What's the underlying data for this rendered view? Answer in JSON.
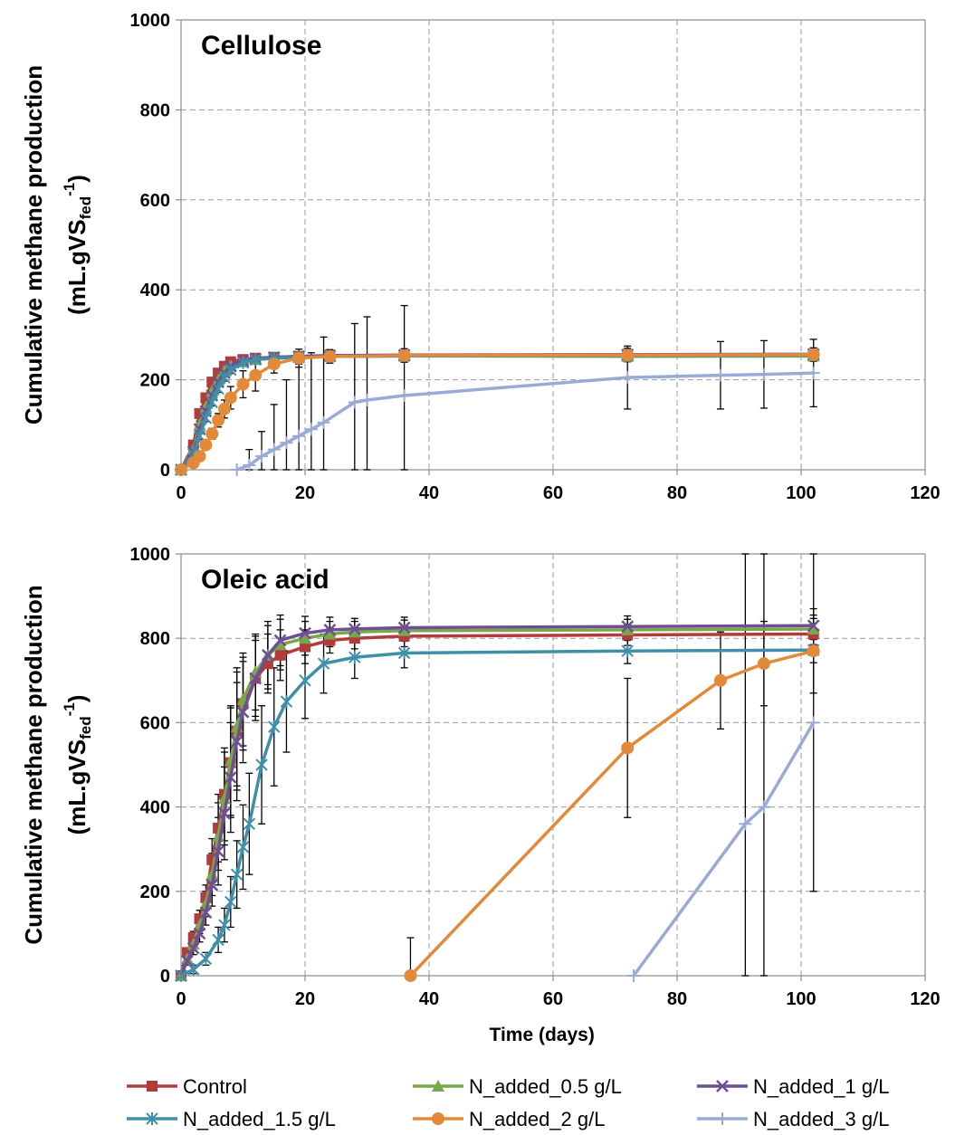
{
  "legend": {
    "placement": "bottom",
    "items": [
      {
        "label": "Control",
        "color": "#b33b3b",
        "marker": "square"
      },
      {
        "label": "N_added_0.5 g/L",
        "color": "#79a84a",
        "marker": "triangle"
      },
      {
        "label": "N_added_1 g/L",
        "color": "#6f4f94",
        "marker": "x"
      },
      {
        "label": "N_added_1.5 g/L",
        "color": "#3f8fa8",
        "marker": "asterisk"
      },
      {
        "label": "N_added_2 g/L",
        "color": "#e38a3a",
        "marker": "circle"
      },
      {
        "label": "N_added_3 g/L",
        "color": "#9aaad6",
        "marker": "plus"
      }
    ]
  },
  "chart_data": [
    {
      "type": "line",
      "title": "Cellulose",
      "xlabel": "",
      "ylabel": "Cumulative methane production (mL.gVSfed-1)",
      "ylabel_main": "Cumulative methane production",
      "ylabel_unit": "(mL.gVS",
      "ylabel_sub": "fed",
      "ylabel_sup": "-1",
      "ylabel_close": ")",
      "xlim": [
        0,
        120
      ],
      "ylim": [
        0,
        1000
      ],
      "xticks": [
        0,
        20,
        40,
        60,
        80,
        100,
        120
      ],
      "yticks": [
        0,
        200,
        400,
        600,
        800,
        1000
      ],
      "grid": true,
      "series": [
        {
          "name": "Control",
          "points": [
            [
              0,
              0
            ],
            [
              2,
              55
            ],
            [
              3,
              125
            ],
            [
              4,
              160
            ],
            [
              5,
              195
            ],
            [
              6,
              215
            ],
            [
              7,
              230
            ],
            [
              8,
              240
            ],
            [
              10,
              245
            ],
            [
              12,
              248
            ],
            [
              15,
              250
            ],
            [
              19,
              252
            ],
            [
              24,
              253
            ],
            [
              36,
              254
            ],
            [
              72,
              255
            ],
            [
              102,
              256
            ]
          ],
          "errors": [
            0,
            5,
            8,
            8,
            8,
            8,
            8,
            8,
            8,
            8,
            8,
            8,
            8,
            8,
            8,
            8
          ]
        },
        {
          "name": "N_added_0.5 g/L",
          "points": [
            [
              0,
              0
            ],
            [
              2,
              45
            ],
            [
              3,
              100
            ],
            [
              4,
              140
            ],
            [
              5,
              175
            ],
            [
              6,
              200
            ],
            [
              7,
              220
            ],
            [
              8,
              232
            ],
            [
              10,
              240
            ],
            [
              12,
              245
            ],
            [
              15,
              248
            ],
            [
              19,
              250
            ],
            [
              24,
              252
            ],
            [
              36,
              253
            ],
            [
              72,
              252
            ],
            [
              102,
              253
            ]
          ],
          "errors": [
            0,
            5,
            8,
            8,
            8,
            8,
            8,
            8,
            8,
            8,
            8,
            8,
            8,
            8,
            8,
            8
          ]
        },
        {
          "name": "N_added_1 g/L",
          "points": [
            [
              0,
              0
            ],
            [
              2,
              40
            ],
            [
              3,
              90
            ],
            [
              4,
              130
            ],
            [
              5,
              165
            ],
            [
              6,
              195
            ],
            [
              7,
              215
            ],
            [
              8,
              230
            ],
            [
              10,
              242
            ],
            [
              12,
              247
            ],
            [
              15,
              250
            ],
            [
              19,
              252
            ],
            [
              24,
              254
            ],
            [
              36,
              255
            ],
            [
              72,
              256
            ],
            [
              102,
              257
            ]
          ],
          "errors": [
            0,
            5,
            8,
            8,
            8,
            8,
            8,
            8,
            8,
            8,
            8,
            8,
            8,
            8,
            8,
            8
          ]
        },
        {
          "name": "N_added_1.5 g/L",
          "points": [
            [
              0,
              0
            ],
            [
              2,
              35
            ],
            [
              3,
              75
            ],
            [
              4,
              115
            ],
            [
              5,
              150
            ],
            [
              6,
              180
            ],
            [
              7,
              205
            ],
            [
              8,
              222
            ],
            [
              10,
              238
            ],
            [
              12,
              245
            ],
            [
              15,
              248
            ],
            [
              19,
              250
            ],
            [
              24,
              252
            ],
            [
              36,
              253
            ],
            [
              72,
              254
            ],
            [
              102,
              255
            ]
          ],
          "errors": [
            0,
            5,
            8,
            8,
            8,
            8,
            8,
            8,
            8,
            8,
            8,
            8,
            8,
            8,
            8,
            8
          ]
        },
        {
          "name": "N_added_2 g/L",
          "points": [
            [
              0,
              0
            ],
            [
              2,
              15
            ],
            [
              3,
              30
            ],
            [
              4,
              55
            ],
            [
              5,
              80
            ],
            [
              6,
              110
            ],
            [
              7,
              135
            ],
            [
              8,
              160
            ],
            [
              10,
              190
            ],
            [
              12,
              210
            ],
            [
              15,
              235
            ],
            [
              19,
              248
            ],
            [
              24,
              252
            ],
            [
              36,
              254
            ],
            [
              72,
              255
            ],
            [
              102,
              256
            ]
          ],
          "errors": [
            0,
            5,
            8,
            10,
            12,
            15,
            20,
            25,
            30,
            35,
            20,
            20,
            15,
            15,
            15,
            15
          ]
        },
        {
          "name": "N_added_3 g/L",
          "points": [
            [
              9,
              0
            ],
            [
              11,
              10
            ],
            [
              13,
              30
            ],
            [
              15,
              45
            ],
            [
              17,
              60
            ],
            [
              19,
              75
            ],
            [
              21,
              90
            ],
            [
              23,
              105
            ],
            [
              28,
              150
            ],
            [
              30,
              155
            ],
            [
              36,
              165
            ],
            [
              72,
              205
            ],
            [
              87,
              210
            ],
            [
              94,
              212
            ],
            [
              102,
              215
            ]
          ],
          "errors": [
            0,
            35,
            55,
            100,
            140,
            160,
            170,
            190,
            175,
            185,
            200,
            70,
            75,
            75,
            75
          ]
        }
      ]
    },
    {
      "type": "line",
      "title": "Oleic acid",
      "xlabel": "Time (days)",
      "ylabel": "Cumulative methane production (mL.gVSfed-1)",
      "ylabel_main": "Cumulative methane production",
      "ylabel_unit": "(mL.gVS",
      "ylabel_sub": "fed",
      "ylabel_sup": "-1",
      "ylabel_close": ")",
      "xlim": [
        0,
        120
      ],
      "ylim": [
        0,
        1000
      ],
      "xticks": [
        0,
        20,
        40,
        60,
        80,
        100,
        120
      ],
      "yticks": [
        0,
        200,
        400,
        600,
        800,
        1000
      ],
      "grid": true,
      "series": [
        {
          "name": "Control",
          "points": [
            [
              0,
              0
            ],
            [
              1,
              55
            ],
            [
              2,
              90
            ],
            [
              3,
              135
            ],
            [
              4,
              185
            ],
            [
              5,
              275
            ],
            [
              6,
              350
            ],
            [
              7,
              430
            ],
            [
              8,
              505
            ],
            [
              9,
              580
            ],
            [
              10,
              645
            ],
            [
              12,
              705
            ],
            [
              14,
              740
            ],
            [
              16,
              760
            ],
            [
              20,
              780
            ],
            [
              24,
              795
            ],
            [
              28,
              800
            ],
            [
              36,
              805
            ],
            [
              72,
              808
            ],
            [
              102,
              810
            ]
          ],
          "errors": [
            0,
            10,
            15,
            20,
            30,
            50,
            80,
            110,
            130,
            140,
            110,
            90,
            70,
            60,
            40,
            30,
            25,
            25,
            25,
            25
          ]
        },
        {
          "name": "N_added_0.5 g/L",
          "points": [
            [
              0,
              0
            ],
            [
              1,
              40
            ],
            [
              2,
              75
            ],
            [
              3,
              120
            ],
            [
              4,
              170
            ],
            [
              5,
              240
            ],
            [
              6,
              330
            ],
            [
              7,
              420
            ],
            [
              8,
              510
            ],
            [
              9,
              590
            ],
            [
              10,
              655
            ],
            [
              12,
              720
            ],
            [
              14,
              760
            ],
            [
              16,
              785
            ],
            [
              20,
              800
            ],
            [
              24,
              810
            ],
            [
              28,
              815
            ],
            [
              36,
              818
            ],
            [
              72,
              820
            ],
            [
              102,
              822
            ]
          ],
          "errors": [
            0,
            10,
            15,
            20,
            30,
            50,
            80,
            110,
            130,
            140,
            110,
            90,
            70,
            60,
            40,
            30,
            25,
            25,
            25,
            25
          ]
        },
        {
          "name": "N_added_1 g/L",
          "points": [
            [
              0,
              0
            ],
            [
              1,
              35
            ],
            [
              2,
              65
            ],
            [
              3,
              100
            ],
            [
              4,
              150
            ],
            [
              5,
              215
            ],
            [
              6,
              295
            ],
            [
              7,
              385
            ],
            [
              8,
              470
            ],
            [
              9,
              555
            ],
            [
              10,
              625
            ],
            [
              12,
              705
            ],
            [
              14,
              760
            ],
            [
              16,
              795
            ],
            [
              20,
              812
            ],
            [
              24,
              820
            ],
            [
              28,
              822
            ],
            [
              36,
              825
            ],
            [
              72,
              828
            ],
            [
              102,
              830
            ]
          ],
          "errors": [
            0,
            10,
            15,
            20,
            30,
            50,
            80,
            110,
            130,
            140,
            120,
            100,
            80,
            60,
            40,
            30,
            25,
            25,
            25,
            25
          ]
        },
        {
          "name": "N_added_1.5 g/L",
          "points": [
            [
              0,
              0
            ],
            [
              2,
              15
            ],
            [
              4,
              40
            ],
            [
              6,
              85
            ],
            [
              7,
              120
            ],
            [
              8,
              175
            ],
            [
              9,
              240
            ],
            [
              10,
              305
            ],
            [
              11,
              360
            ],
            [
              13,
              500
            ],
            [
              15,
              590
            ],
            [
              17,
              650
            ],
            [
              20,
              700
            ],
            [
              23,
              740
            ],
            [
              28,
              755
            ],
            [
              36,
              765
            ],
            [
              72,
              770
            ],
            [
              102,
              772
            ]
          ],
          "errors": [
            0,
            10,
            15,
            30,
            40,
            60,
            80,
            100,
            120,
            140,
            140,
            120,
            90,
            70,
            50,
            35,
            30,
            30
          ]
        },
        {
          "name": "N_added_2 g/L",
          "points": [
            [
              37,
              0
            ],
            [
              72,
              540
            ],
            [
              87,
              700
            ],
            [
              94,
              740
            ],
            [
              102,
              770
            ]
          ],
          "errors": [
            90,
            165,
            115,
            100,
            100
          ]
        },
        {
          "name": "N_added_3 g/L",
          "points": [
            [
              73,
              0
            ],
            [
              91,
              360
            ],
            [
              94,
              400
            ],
            [
              102,
              600
            ]
          ],
          "errors": [
            0,
            700,
            600,
            400
          ]
        }
      ]
    }
  ]
}
